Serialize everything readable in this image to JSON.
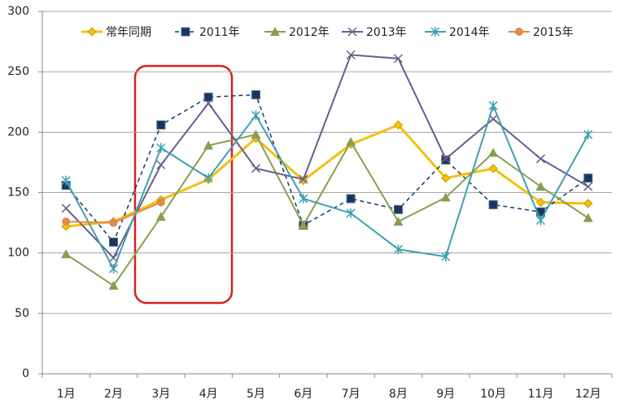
{
  "chart_data": {
    "type": "line",
    "categories": [
      "1月",
      "2月",
      "3月",
      "4月",
      "5月",
      "6月",
      "7月",
      "8月",
      "9月",
      "10月",
      "11月",
      "12月"
    ],
    "ylim": [
      0,
      300
    ],
    "yticks": [
      0,
      50,
      100,
      150,
      200,
      250,
      300
    ],
    "grid": true,
    "legend": "top",
    "series": [
      {
        "name": "常年同期",
        "color": "#f2c10f",
        "marker": "diamond",
        "dash": false,
        "width": 3,
        "values": [
          122,
          126,
          144,
          161,
          195,
          160,
          190,
          206,
          162,
          170,
          142,
          141
        ]
      },
      {
        "name": "2011年",
        "color": "#17375e",
        "marker": "square",
        "dash": true,
        "width": 1.5,
        "values": [
          156,
          109,
          206,
          229,
          231,
          123,
          145,
          136,
          177,
          140,
          134,
          162
        ]
      },
      {
        "name": "2012年",
        "color": "#8a9e4e",
        "marker": "triangle",
        "dash": false,
        "width": 2,
        "values": [
          99,
          73,
          130,
          189,
          198,
          123,
          192,
          126,
          146,
          183,
          155,
          129
        ]
      },
      {
        "name": "2013年",
        "color": "#6b5b8c",
        "marker": "x",
        "dash": false,
        "width": 2,
        "values": [
          137,
          96,
          173,
          224,
          170,
          161,
          264,
          261,
          178,
          211,
          178,
          155
        ]
      },
      {
        "name": "2014年",
        "color": "#3f9fb0",
        "marker": "star",
        "dash": false,
        "width": 2,
        "values": [
          160,
          87,
          187,
          162,
          214,
          145,
          133,
          103,
          97,
          222,
          127,
          198
        ]
      },
      {
        "name": "2015年",
        "color": "#e0894b",
        "marker": "circle",
        "dash": false,
        "width": 2,
        "values": [
          126,
          125,
          142,
          null,
          null,
          null,
          null,
          null,
          null,
          null,
          null,
          null
        ]
      }
    ]
  }
}
